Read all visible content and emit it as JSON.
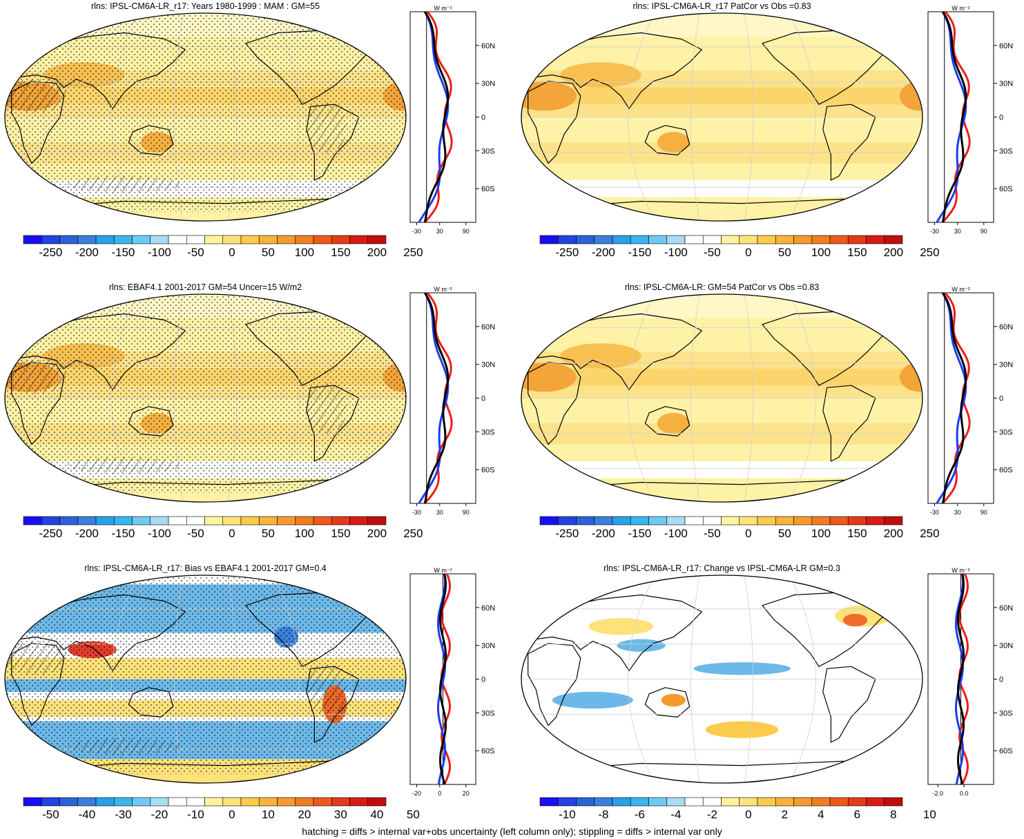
{
  "variable": "rlns",
  "footer": "hatching = diffs > internal var+obs uncertainty (left column only); stippling = diffs > internal var only",
  "colors": {
    "ocean_base": "#fdf2a6",
    "land_base": "#fbd46a",
    "warm_strong": "#f3a53a",
    "bias_blue": "#6cb8e8",
    "bias_red": "#e33b2b",
    "profile_red": "#ee1c1c",
    "profile_blue": "#1c3cee",
    "profile_black": "#000000",
    "coast": "#000000",
    "grid": "#cfcfcf"
  },
  "colormap": [
    "#1a0ff2",
    "#2342e0",
    "#2b62d8",
    "#3a7fdb",
    "#2aa0e6",
    "#38b6ef",
    "#6fcaf2",
    "#a8dcf3",
    "#ffffff",
    "#ffffff",
    "#fff3a0",
    "#fde27a",
    "#fccb4c",
    "#f9b33a",
    "#f59a2c",
    "#f17d22",
    "#ec5a1c",
    "#e53918",
    "#d81b14",
    "#c00d0d"
  ],
  "panels": [
    {
      "id": "top-left",
      "title": "rlns: IPSL-CM6A-LR_r17: Years 1980-1999 : MAM : GM=55",
      "cbar_ticks": [
        "-250",
        "-200",
        "-150",
        "-100",
        "-50",
        "0",
        "50",
        "100",
        "150",
        "200",
        "250"
      ],
      "profile": {
        "units": "W m⁻²",
        "xticks": [
          "-30",
          "30",
          "90"
        ],
        "lat_labels": [
          "60N",
          "30N",
          "0",
          "30S",
          "60S"
        ],
        "mode": "mean"
      },
      "style": "mean",
      "hatch": true
    },
    {
      "id": "top-right",
      "title": "rlns: IPSL-CM6A-LR_r17 PatCor vs Obs =0.83",
      "cbar_ticks": [
        "-250",
        "-200",
        "-150",
        "-100",
        "-50",
        "0",
        "50",
        "100",
        "150",
        "200",
        "250"
      ],
      "profile": {
        "units": "W m⁻²",
        "xticks": [
          "-30",
          "30",
          "90"
        ],
        "lat_labels": [
          "60N",
          "30N",
          "0",
          "30S",
          "60S"
        ],
        "mode": "mean"
      },
      "style": "mean",
      "hatch": false
    },
    {
      "id": "middle-left",
      "title": "rlns: EBAF4.1 2001-2017 GM=54 Uncer=15 W/m2",
      "cbar_ticks": [
        "-250",
        "-200",
        "-150",
        "-100",
        "-50",
        "0",
        "50",
        "100",
        "150",
        "200",
        "250"
      ],
      "profile": {
        "units": "W m⁻²",
        "xticks": [
          "-30",
          "30",
          "90"
        ],
        "lat_labels": [
          "60N",
          "30N",
          "0",
          "30S",
          "60S"
        ],
        "mode": "mean"
      },
      "style": "mean",
      "hatch": true
    },
    {
      "id": "middle-right",
      "title": "rlns: IPSL-CM6A-LR: GM=54 PatCor vs Obs =0.83",
      "cbar_ticks": [
        "-250",
        "-200",
        "-150",
        "-100",
        "-50",
        "0",
        "50",
        "100",
        "150",
        "200",
        "250"
      ],
      "profile": {
        "units": "W m⁻²",
        "xticks": [
          "-30",
          "30",
          "90"
        ],
        "lat_labels": [
          "60N",
          "30N",
          "0",
          "30S",
          "60S"
        ],
        "mode": "mean"
      },
      "style": "mean",
      "hatch": false
    },
    {
      "id": "bottom-left",
      "title": "rlns: IPSL-CM6A-LR_r17: Bias vs EBAF4.1 2001-2017 GM=0.4",
      "cbar_ticks": [
        "-50",
        "-40",
        "-30",
        "-20",
        "-10",
        "0",
        "10",
        "20",
        "30",
        "40",
        "50"
      ],
      "profile": {
        "units": "W m⁻²",
        "xticks": [
          "-20",
          "0",
          "20"
        ],
        "lat_labels": [
          "60N",
          "30N",
          "0",
          "30S",
          "60S"
        ],
        "mode": "bias"
      },
      "style": "bias",
      "hatch": true
    },
    {
      "id": "bottom-right",
      "title": "rlns: IPSL-CM6A-LR_r17: Change vs IPSL-CM6A-LR GM=0.3",
      "cbar_ticks": [
        "-10",
        "-8",
        "-6",
        "-4",
        "-2",
        "0",
        "2",
        "4",
        "6",
        "8",
        "10"
      ],
      "profile": {
        "units": "W m⁻²",
        "xticks": [
          "-2.0",
          "0.0"
        ],
        "lat_labels": [
          "60N",
          "30N",
          "0",
          "30S",
          "60S"
        ],
        "mode": "change"
      },
      "style": "change",
      "hatch": false
    }
  ]
}
